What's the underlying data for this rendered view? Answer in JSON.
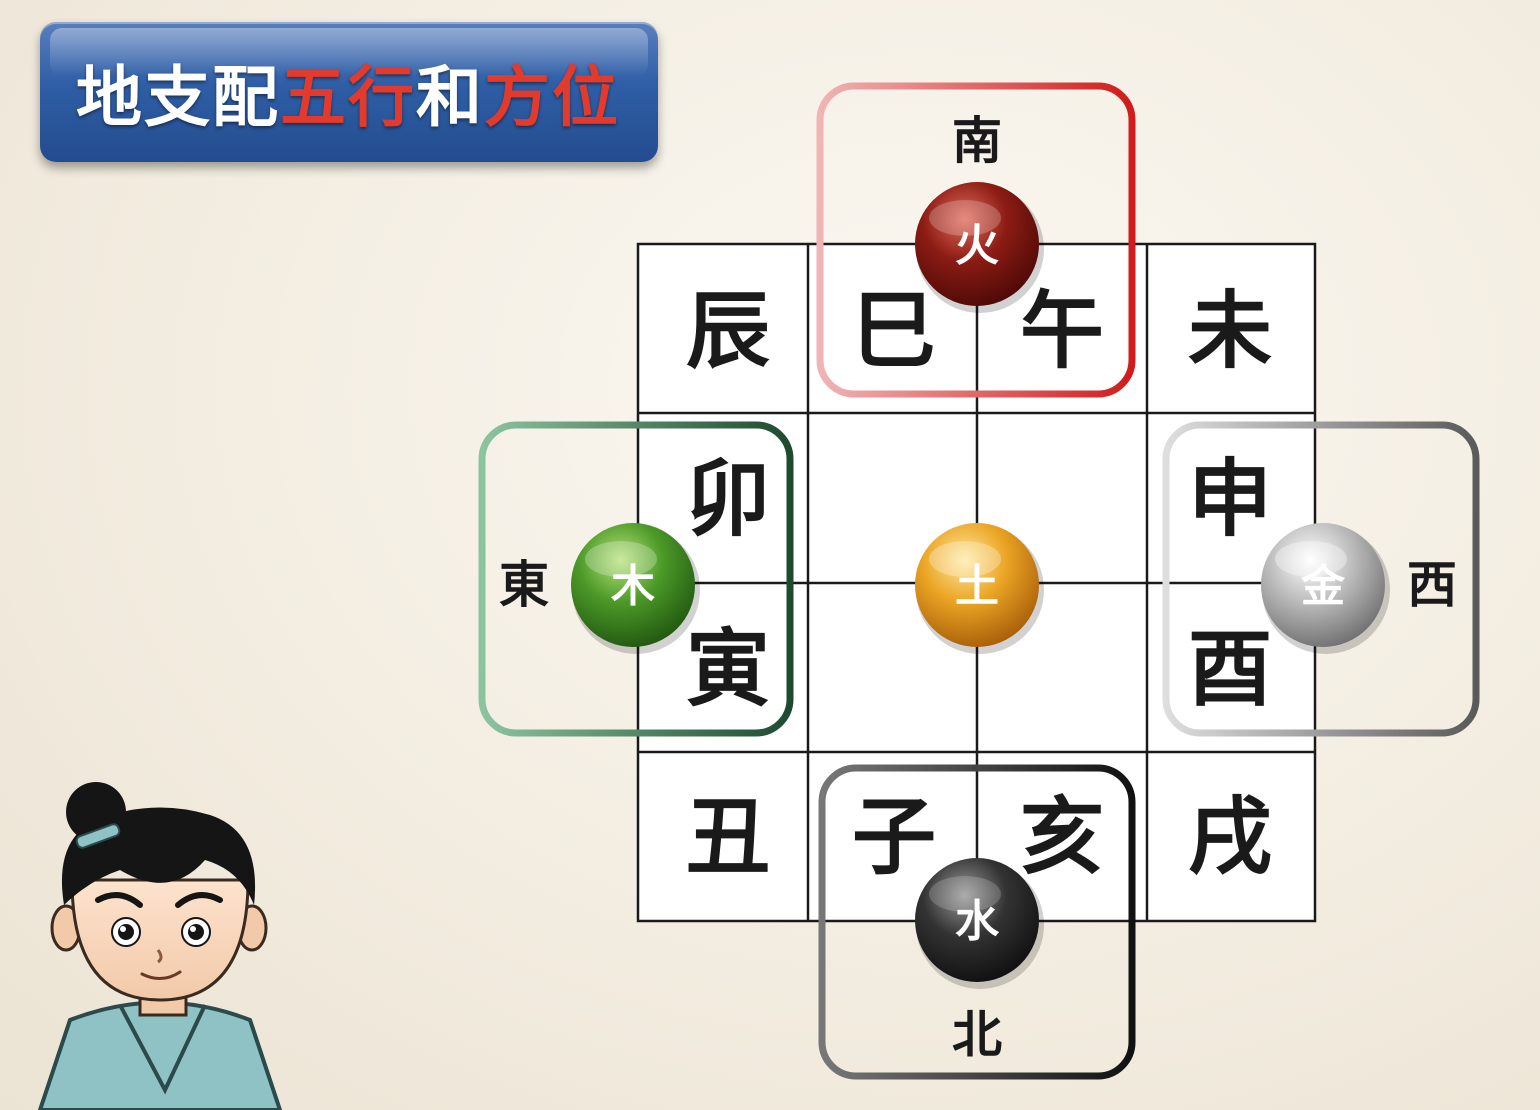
{
  "title": {
    "part1": "地支配",
    "part2": "五行",
    "part3": "和",
    "part4": "方位"
  },
  "branches": {
    "chen": "辰",
    "si": "巳",
    "wu": "午",
    "wei": "未",
    "mao": "卯",
    "shen": "申",
    "yin": "寅",
    "you": "酉",
    "chou": "丑",
    "zi": "子",
    "hai": "亥",
    "xu": "戌"
  },
  "directions": {
    "south": "南",
    "east": "東",
    "west": "西",
    "north": "北"
  },
  "elements": {
    "fire": "火",
    "wood": "木",
    "earth": "土",
    "metal": "金",
    "water": "水"
  },
  "colors": {
    "fire": "#a8201a",
    "wood": "#4f9a2a",
    "earth": "#e6a21e",
    "metal": "#b8b8b8",
    "water": "#3a3a3a",
    "south_frame": "#d23a3a",
    "east_frame": "#3d7a55",
    "west_frame": "#8a8a8a",
    "north_frame": "#333333"
  }
}
